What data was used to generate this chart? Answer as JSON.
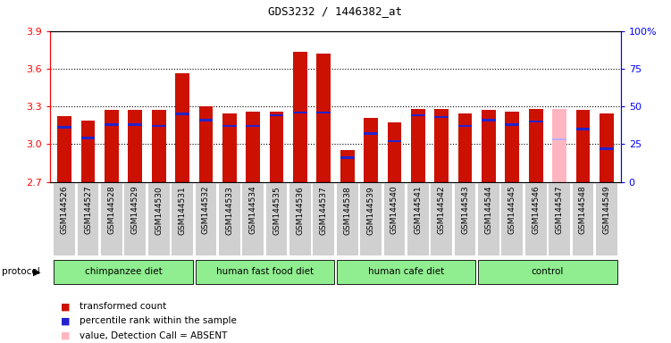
{
  "title": "GDS3232 / 1446382_at",
  "samples": [
    "GSM144526",
    "GSM144527",
    "GSM144528",
    "GSM144529",
    "GSM144530",
    "GSM144531",
    "GSM144532",
    "GSM144533",
    "GSM144534",
    "GSM144535",
    "GSM144536",
    "GSM144537",
    "GSM144538",
    "GSM144539",
    "GSM144540",
    "GSM144541",
    "GSM144542",
    "GSM144543",
    "GSM144544",
    "GSM144545",
    "GSM144546",
    "GSM144547",
    "GSM144548",
    "GSM144549"
  ],
  "values": [
    3.22,
    3.19,
    3.27,
    3.27,
    3.27,
    3.56,
    3.3,
    3.24,
    3.26,
    3.26,
    3.73,
    3.72,
    2.95,
    3.21,
    3.17,
    3.28,
    3.28,
    3.24,
    3.27,
    3.26,
    3.28,
    3.28,
    3.27,
    3.24
  ],
  "ranks_pct": [
    36,
    29,
    38,
    38,
    37,
    45,
    41,
    37,
    37,
    44,
    46,
    46,
    16,
    32,
    27,
    44,
    43,
    37,
    41,
    38,
    40,
    28,
    35,
    22
  ],
  "absent_flags": [
    false,
    false,
    false,
    false,
    false,
    false,
    false,
    false,
    false,
    false,
    false,
    false,
    false,
    false,
    false,
    false,
    false,
    false,
    false,
    false,
    false,
    true,
    false,
    false
  ],
  "groups": [
    {
      "label": "chimpanzee diet",
      "start": 0,
      "end": 6
    },
    {
      "label": "human fast food diet",
      "start": 6,
      "end": 12
    },
    {
      "label": "human cafe diet",
      "start": 12,
      "end": 18
    },
    {
      "label": "control",
      "start": 18,
      "end": 24
    }
  ],
  "ylim_left": [
    2.7,
    3.9
  ],
  "ylim_right": [
    0,
    100
  ],
  "yticks_left": [
    2.7,
    3.0,
    3.3,
    3.6,
    3.9
  ],
  "yticks_right": [
    0,
    25,
    50,
    75,
    100
  ],
  "bar_color": "#CC1100",
  "rank_color": "#2222CC",
  "absent_bar_color": "#FFB6C1",
  "absent_rank_color": "#BBAAFF",
  "bar_width": 0.6,
  "ybase": 2.7,
  "protocol_label": "protocol",
  "group_color": "#90EE90",
  "xticklabel_bg": "#D0D0D0"
}
